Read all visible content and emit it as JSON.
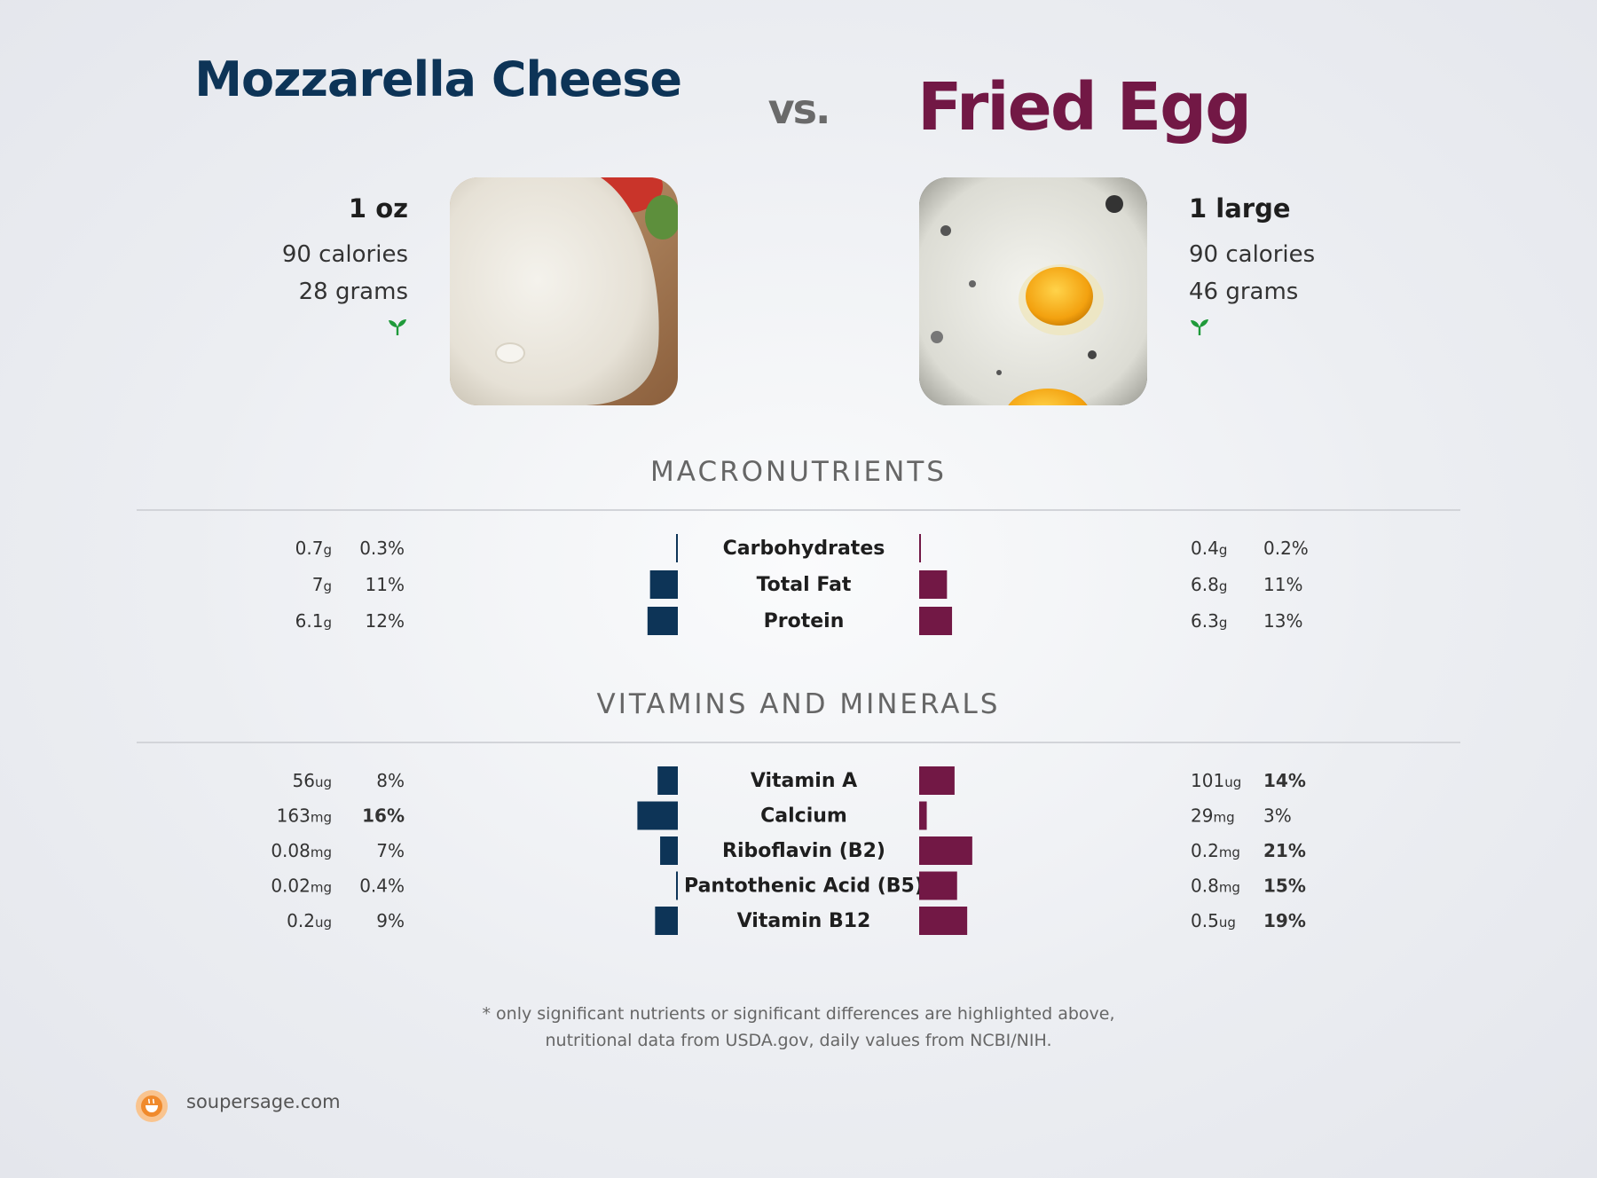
{
  "header": {
    "left_title": "Mozzarella Cheese",
    "vs": "vs.",
    "right_title": "Fried Egg"
  },
  "left_food": {
    "serving": "1 oz",
    "calories": "90 calories",
    "grams": "28 grams",
    "badge_icon": "sprout-icon"
  },
  "right_food": {
    "serving": "1 large",
    "calories": "90 calories",
    "grams": "46 grams",
    "badge_icon": "sprout-icon"
  },
  "sections": {
    "macros_title": "MACRONUTRIENTS",
    "vitamins_title": "VITAMINS AND MINERALS"
  },
  "colors": {
    "left": "#0d3457",
    "right": "#721845",
    "sprout": "#1f9a3a"
  },
  "chart_data": [
    {
      "type": "bar",
      "title": "MACRONUTRIENTS",
      "rows": [
        {
          "nutrient": "Carbohydrates",
          "left_amount": "0.7",
          "left_unit": "g",
          "left_pct": "0.3%",
          "left_value": 0.3,
          "left_bold": false,
          "right_amount": "0.4",
          "right_unit": "g",
          "right_pct": "0.2%",
          "right_value": 0.2,
          "right_bold": false
        },
        {
          "nutrient": "Total Fat",
          "left_amount": "7",
          "left_unit": "g",
          "left_pct": "11%",
          "left_value": 11,
          "left_bold": false,
          "right_amount": "6.8",
          "right_unit": "g",
          "right_pct": "11%",
          "right_value": 11,
          "right_bold": false
        },
        {
          "nutrient": "Protein",
          "left_amount": "6.1",
          "left_unit": "g",
          "left_pct": "12%",
          "left_value": 12,
          "left_bold": false,
          "right_amount": "6.3",
          "right_unit": "g",
          "right_pct": "13%",
          "right_value": 13,
          "right_bold": false
        }
      ]
    },
    {
      "type": "bar",
      "title": "VITAMINS AND MINERALS",
      "rows": [
        {
          "nutrient": "Vitamin A",
          "left_amount": "56",
          "left_unit": "ug",
          "left_pct": "8%",
          "left_value": 8,
          "left_bold": false,
          "right_amount": "101",
          "right_unit": "ug",
          "right_pct": "14%",
          "right_value": 14,
          "right_bold": true
        },
        {
          "nutrient": "Calcium",
          "left_amount": "163",
          "left_unit": "mg",
          "left_pct": "16%",
          "left_value": 16,
          "left_bold": true,
          "right_amount": "29",
          "right_unit": "mg",
          "right_pct": "3%",
          "right_value": 3,
          "right_bold": false
        },
        {
          "nutrient": "Riboflavin (B2)",
          "left_amount": "0.08",
          "left_unit": "mg",
          "left_pct": "7%",
          "left_value": 7,
          "left_bold": false,
          "right_amount": "0.2",
          "right_unit": "mg",
          "right_pct": "21%",
          "right_value": 21,
          "right_bold": true
        },
        {
          "nutrient": "Pantothenic Acid (B5)",
          "left_amount": "0.02",
          "left_unit": "mg",
          "left_pct": "0.4%",
          "left_value": 0.4,
          "left_bold": false,
          "right_amount": "0.8",
          "right_unit": "mg",
          "right_pct": "15%",
          "right_value": 15,
          "right_bold": true
        },
        {
          "nutrient": "Vitamin B12",
          "left_amount": "0.2",
          "left_unit": "ug",
          "left_pct": "9%",
          "left_value": 9,
          "left_bold": false,
          "right_amount": "0.5",
          "right_unit": "ug",
          "right_pct": "19%",
          "right_value": 19,
          "right_bold": true
        }
      ]
    }
  ],
  "footer": {
    "note_line1": "* only significant nutrients or significant differences are highlighted above,",
    "note_line2": "nutritional data from USDA.gov, daily values from NCBI/NIH.",
    "brand": "soupersage.com",
    "logo_icon": "soupersage-logo-icon"
  }
}
